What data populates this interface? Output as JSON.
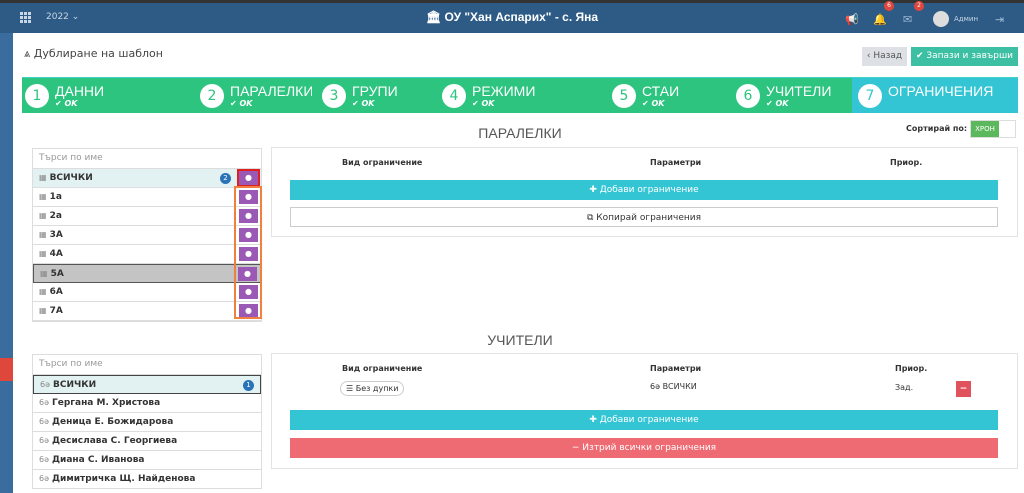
{
  "header": {
    "year": "2022",
    "school": "ОУ \"Хан Аспарих\" - с. Яна",
    "notifications": "6",
    "messages": "2",
    "user": "Админ"
  },
  "page": {
    "title": "Дублиране на шаблон",
    "back": "Назад",
    "save": "Запази и завърши"
  },
  "steps": [
    {
      "n": "1",
      "label": "ДАННИ",
      "status": "OK"
    },
    {
      "n": "2",
      "label": "ПАРАЛЕЛКИ",
      "status": "OK"
    },
    {
      "n": "3",
      "label": "ГРУПИ",
      "status": "OK"
    },
    {
      "n": "4",
      "label": "РЕЖИМИ",
      "status": "OK"
    },
    {
      "n": "5",
      "label": "СТАИ",
      "status": "OK"
    },
    {
      "n": "6",
      "label": "УЧИТЕЛИ",
      "status": "OK"
    },
    {
      "n": "7",
      "label": "ОГРАНИЧЕНИЯ"
    }
  ],
  "sort": {
    "label": "Сортирай по:",
    "value": "ХРОН"
  },
  "classes": {
    "heading": "ПАРАЛЕЛКИ",
    "search_placeholder": "Търси по име",
    "all": "ВСИЧКИ",
    "all_count": "2",
    "items": [
      "1а",
      "2а",
      "3А",
      "4А",
      "5А",
      "6А",
      "7А"
    ],
    "selected": "5А",
    "cols": [
      "Вид ограничение",
      "Параметри",
      "Приор."
    ],
    "add": "Добави ограничение",
    "copy": "Копирай ограничения"
  },
  "teachers": {
    "heading": "УЧИТЕЛИ",
    "search_placeholder": "Търси по име",
    "all": "ВСИЧКИ",
    "all_count": "1",
    "items": [
      "Гергана М. Христова",
      "Деница Е. Божидарова",
      "Десислава С. Георгиева",
      "Диана С. Иванова",
      "Димитричка Щ. Найденова"
    ],
    "cols": [
      "Вид ограничение",
      "Параметри",
      "Приор."
    ],
    "constraint": {
      "type": "Без дупки",
      "param": "ВСИЧКИ",
      "prio": "Зад."
    },
    "add": "Добави ограничение",
    "delete_all": "Изтрий всички ограничения"
  },
  "colors": {
    "header": "#2d5b86",
    "green": "#2dc47f",
    "cyan": "#33c5d3",
    "red": "#ef6b73",
    "purple": "#9b59b6"
  }
}
